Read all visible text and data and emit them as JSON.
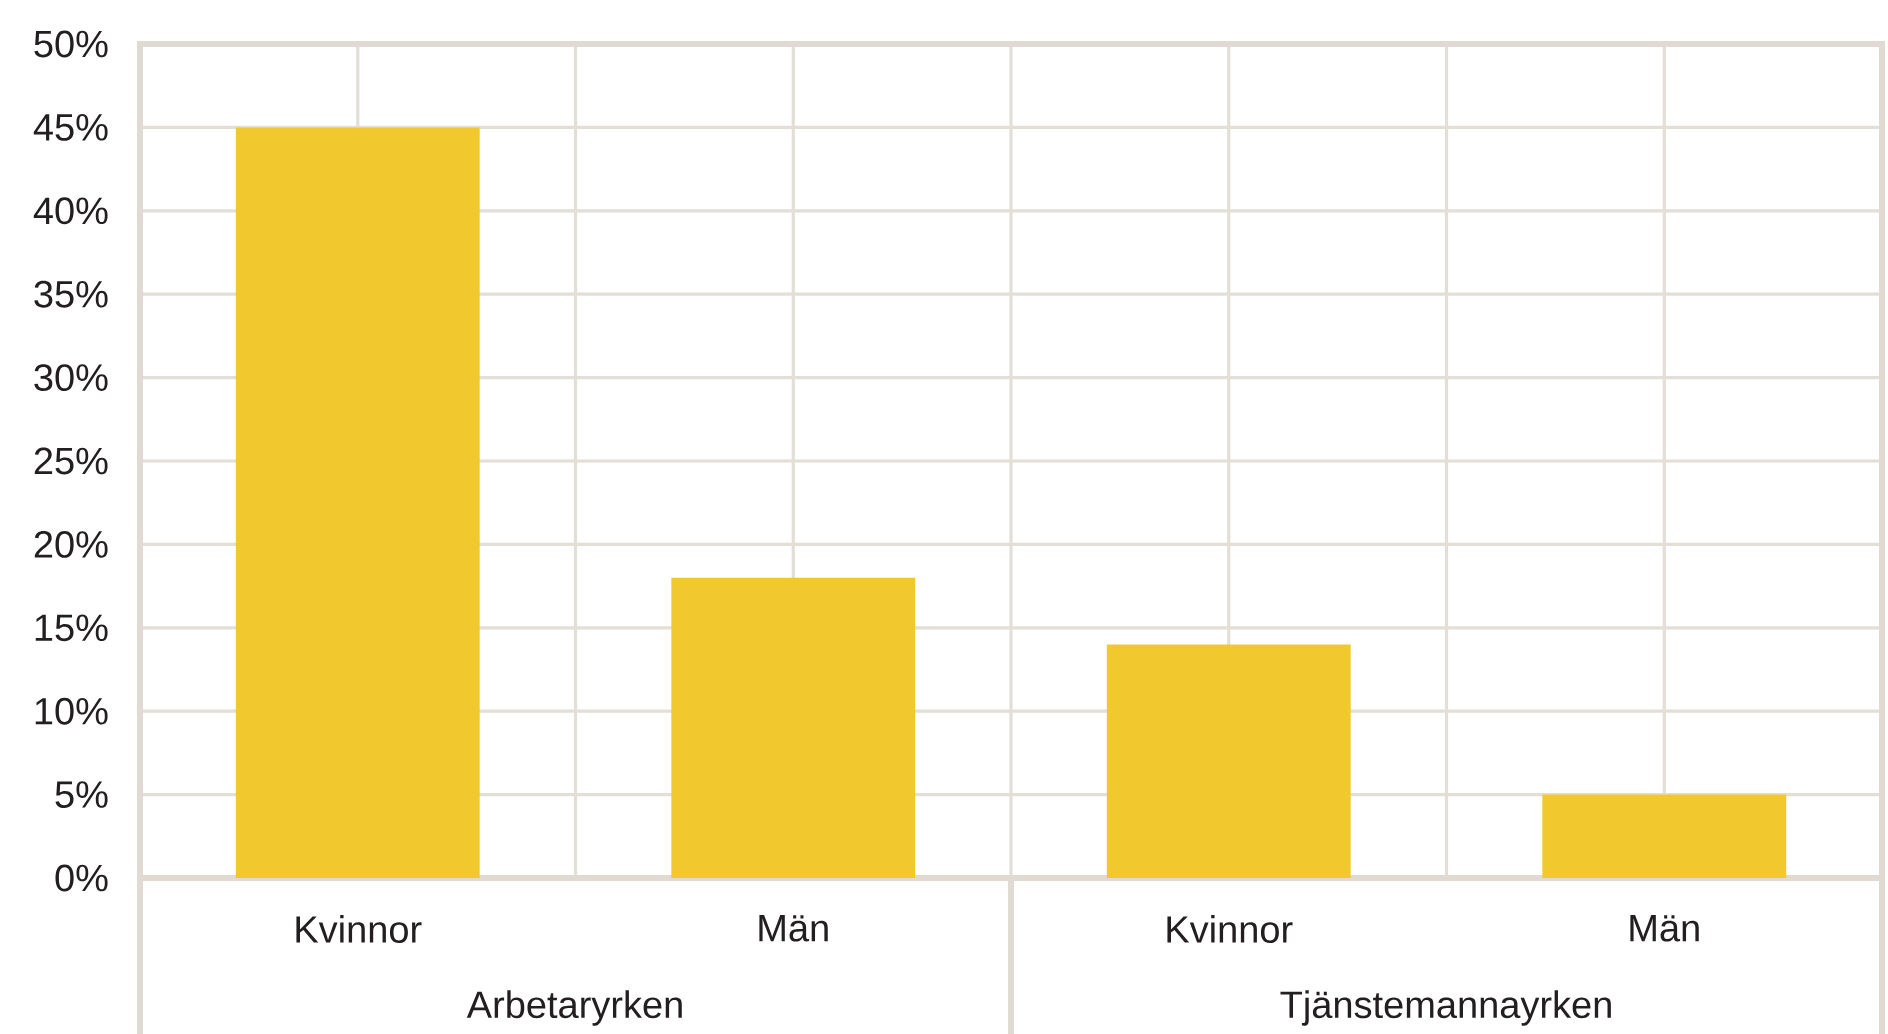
{
  "chart_data": {
    "type": "bar",
    "categories": [
      "Kvinnor",
      "Män",
      "Kvinnor",
      "Män"
    ],
    "values": [
      45,
      18,
      14,
      5
    ],
    "color": "#f2c82f",
    "ylim": [
      0,
      50
    ],
    "yticks": [
      {
        "value": 0,
        "label": "0%"
      },
      {
        "value": 5,
        "label": "5%"
      },
      {
        "value": 10,
        "label": "10%"
      },
      {
        "value": 15,
        "label": "15%"
      },
      {
        "value": 20,
        "label": "20%"
      },
      {
        "value": 25,
        "label": "25%"
      },
      {
        "value": 30,
        "label": "30%"
      },
      {
        "value": 35,
        "label": "35%"
      },
      {
        "value": 40,
        "label": "40%"
      },
      {
        "value": 45,
        "label": "45%"
      },
      {
        "value": 50,
        "label": "50%"
      }
    ],
    "grid": true,
    "annotations": [
      "Arbetaryrken",
      "Tjänstemannayrken"
    ]
  }
}
